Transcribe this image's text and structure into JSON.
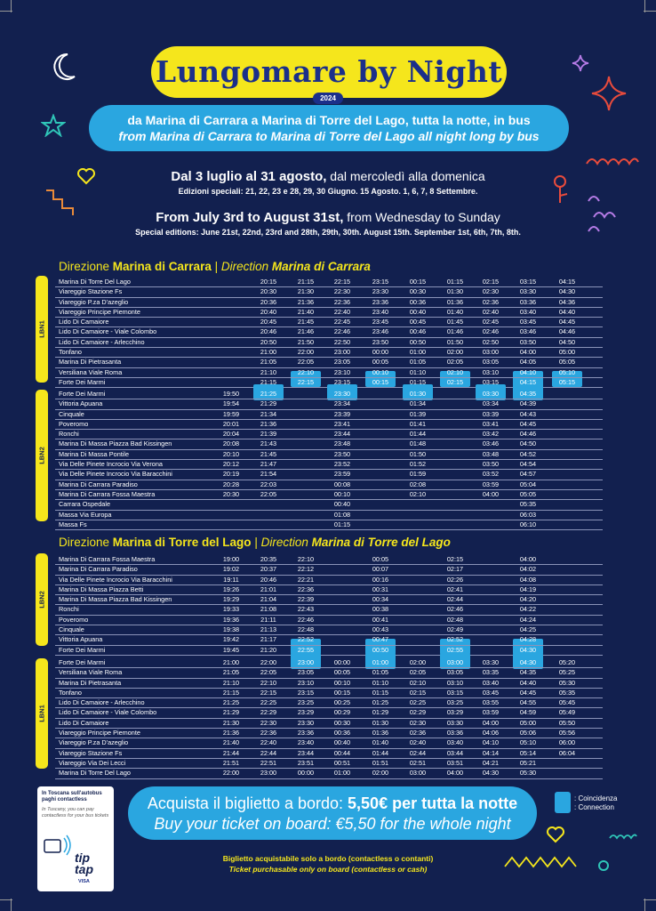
{
  "title": "Lungomare by Night",
  "year": "2024",
  "subtitle_it": "da Marina di Carrara a Marina di Torre del Lago, tutta la notte, in bus",
  "subtitle_en": "from Marina di Carrara to Marina di Torre del Lago all night long by bus",
  "period_it_bold": "Dal 3 luglio al 31 agosto,",
  "period_it_rest": " dal mercoledì alla domenica",
  "special_it": "Edizioni speciali: 21, 22, 23 e 28, 29, 30 Giugno. 15 Agosto. 1, 6, 7, 8 Settembre.",
  "period_en_bold": "From July 3rd to August 31st,",
  "period_en_rest": " from Wednesday to Sunday",
  "special_en": "Special editions: June 21st, 22nd, 23rd and 28th, 29th, 30th. August 15th. September 1st, 6th, 7th, 8th.",
  "section1": {
    "it_prefix": "Direzione ",
    "it_dest": "Marina di Carrara",
    "sep": " | ",
    "en_prefix": "Direction ",
    "en_dest": "Marina di Carrara"
  },
  "section2": {
    "it_prefix": "Direzione ",
    "it_dest": "Marina di Torre del Lago",
    "sep": " | ",
    "en_prefix": "Direction ",
    "en_dest": "Marina di Torre del Lago"
  },
  "lines": {
    "lbn1": "LBN1",
    "lbn2": "LBN2"
  },
  "table1a": [
    [
      "Marina Di Torre Del Lago",
      "",
      "20:15",
      "21:15",
      "22:15",
      "23:15",
      "00:15",
      "01:15",
      "02:15",
      "03:15",
      "04:15"
    ],
    [
      "Viareggio Stazione Fs",
      "",
      "20:30",
      "21:30",
      "22:30",
      "23:30",
      "00:30",
      "01:30",
      "02:30",
      "03:30",
      "04:30"
    ],
    [
      "Viareggio P.za D'azeglio",
      "",
      "20:36",
      "21:36",
      "22:36",
      "23:36",
      "00:36",
      "01:36",
      "02:36",
      "03:36",
      "04:36"
    ],
    [
      "Viareggio Principe Piemonte",
      "",
      "20:40",
      "21:40",
      "22:40",
      "23:40",
      "00:40",
      "01:40",
      "02:40",
      "03:40",
      "04:40"
    ],
    [
      "Lido Di Camaiore",
      "",
      "20:45",
      "21:45",
      "22:45",
      "23:45",
      "00:45",
      "01:45",
      "02:45",
      "03:45",
      "04:45"
    ],
    [
      "Lido Di Camaiore - Viale Colombo",
      "",
      "20:46",
      "21:46",
      "22:46",
      "23:46",
      "00:46",
      "01:46",
      "02:46",
      "03:46",
      "04:46"
    ],
    [
      "Lido Di Camaiore - Arlecchino",
      "",
      "20:50",
      "21:50",
      "22:50",
      "23:50",
      "00:50",
      "01:50",
      "02:50",
      "03:50",
      "04:50"
    ],
    [
      "Tonfano",
      "",
      "21:00",
      "22:00",
      "23:00",
      "00:00",
      "01:00",
      "02:00",
      "03:00",
      "04:00",
      "05:00"
    ],
    [
      "Marina Di Pietrasanta",
      "",
      "21:05",
      "22:05",
      "23:05",
      "00:05",
      "01:05",
      "02:05",
      "03:05",
      "04:05",
      "05:05"
    ],
    [
      "Versiliana Viale Roma",
      "",
      "21:10",
      "22:10",
      "23:10",
      "00:10",
      "01:10",
      "02:10",
      "03:10",
      "04:10",
      "05:10"
    ],
    [
      "Forte Dei Marmi",
      "",
      "21:15",
      "22:15",
      "23:15",
      "00:15",
      "01:15",
      "02:15",
      "03:15",
      "04:15",
      "05:15"
    ]
  ],
  "table1b": [
    [
      "Forte Dei Marmi",
      "19:50",
      "21:25",
      "",
      "23:30",
      "",
      "01:30",
      "",
      "03:30",
      "04:35",
      ""
    ],
    [
      "Vittoria Apuana",
      "19:54",
      "21:29",
      "",
      "23:34",
      "",
      "01:34",
      "",
      "03:34",
      "04:39",
      ""
    ],
    [
      "Cinquale",
      "19:59",
      "21:34",
      "",
      "23:39",
      "",
      "01:39",
      "",
      "03:39",
      "04:43",
      ""
    ],
    [
      "Poveromo",
      "20:01",
      "21:36",
      "",
      "23:41",
      "",
      "01:41",
      "",
      "03:41",
      "04:45",
      ""
    ],
    [
      "Ronchi",
      "20:04",
      "21:39",
      "",
      "23:44",
      "",
      "01:44",
      "",
      "03:42",
      "04:46",
      ""
    ],
    [
      "Marina Di Massa Piazza Bad Kissingen",
      "20:08",
      "21:43",
      "",
      "23:48",
      "",
      "01:48",
      "",
      "03:46",
      "04:50",
      ""
    ],
    [
      "Marina Di Massa Pontile",
      "20:10",
      "21:45",
      "",
      "23:50",
      "",
      "01:50",
      "",
      "03:48",
      "04:52",
      ""
    ],
    [
      "Via Delle Pinete Incrocio Via Verona",
      "20:12",
      "21:47",
      "",
      "23:52",
      "",
      "01:52",
      "",
      "03:50",
      "04:54",
      ""
    ],
    [
      "Via Delle Pinete Incrocio Via Baracchini",
      "20:19",
      "21:54",
      "",
      "23:59",
      "",
      "01:59",
      "",
      "03:52",
      "04:57",
      ""
    ],
    [
      "Marina Di Carrara Paradiso",
      "20:28",
      "22:03",
      "",
      "00:08",
      "",
      "02:08",
      "",
      "03:59",
      "05:04",
      ""
    ],
    [
      "Marina Di Carrara Fossa Maestra",
      "20:30",
      "22:05",
      "",
      "00:10",
      "",
      "02:10",
      "",
      "04:00",
      "05:05",
      ""
    ],
    [
      "Carrara Ospedale",
      "",
      "",
      "",
      "00:40",
      "",
      "",
      "",
      "",
      "05:35",
      ""
    ],
    [
      "Massa Via Europa",
      "",
      "",
      "",
      "01:08",
      "",
      "",
      "",
      "",
      "06:03",
      ""
    ],
    [
      "Massa Fs",
      "",
      "",
      "",
      "01:15",
      "",
      "",
      "",
      "",
      "06:10",
      ""
    ]
  ],
  "table2a": [
    [
      "Marina Di Carrara Fossa Maestra",
      "19:00",
      "20:35",
      "22:10",
      "",
      "00:05",
      "",
      "02:15",
      "",
      "04:00",
      ""
    ],
    [
      "Marina Di Carrara Paradiso",
      "19:02",
      "20:37",
      "22:12",
      "",
      "00:07",
      "",
      "02:17",
      "",
      "04:02",
      ""
    ],
    [
      "Via Delle Pinete Incrocio Via Baracchini",
      "19:11",
      "20:46",
      "22:21",
      "",
      "00:16",
      "",
      "02:26",
      "",
      "04:08",
      ""
    ],
    [
      "Marina Di Massa Piazza Betti",
      "19:26",
      "21:01",
      "22:36",
      "",
      "00:31",
      "",
      "02:41",
      "",
      "04:19",
      ""
    ],
    [
      "Marina Di Massa Piazza Bad Kissingen",
      "19:29",
      "21:04",
      "22:39",
      "",
      "00:34",
      "",
      "02:44",
      "",
      "04:20",
      ""
    ],
    [
      "Ronchi",
      "19:33",
      "21:08",
      "22:43",
      "",
      "00:38",
      "",
      "02:46",
      "",
      "04:22",
      ""
    ],
    [
      "Poveromo",
      "19:36",
      "21:11",
      "22:46",
      "",
      "00:41",
      "",
      "02:48",
      "",
      "04:24",
      ""
    ],
    [
      "Cinquale",
      "19:38",
      "21:13",
      "22:48",
      "",
      "00:43",
      "",
      "02:49",
      "",
      "04:25",
      ""
    ],
    [
      "Vittoria Apuana",
      "19:42",
      "21:17",
      "22:52",
      "",
      "00:47",
      "",
      "02:52",
      "",
      "04:28",
      ""
    ],
    [
      "Forte Dei Marmi",
      "19:45",
      "21:20",
      "22:55",
      "",
      "00:50",
      "",
      "02:55",
      "",
      "04:30",
      ""
    ]
  ],
  "table2b": [
    [
      "Forte Dei Marmi",
      "21:00",
      "22:00",
      "23:00",
      "00:00",
      "01:00",
      "02:00",
      "03:00",
      "03:30",
      "04:30",
      "05:20"
    ],
    [
      "Versiliana Viale Roma",
      "21:05",
      "22:05",
      "23:05",
      "00:05",
      "01:05",
      "02:05",
      "03:05",
      "03:35",
      "04:35",
      "05:25"
    ],
    [
      "Marina Di Pietrasanta",
      "21:10",
      "22:10",
      "23:10",
      "00:10",
      "01:10",
      "02:10",
      "03:10",
      "03:40",
      "04:40",
      "05:30"
    ],
    [
      "Tonfano",
      "21:15",
      "22:15",
      "23:15",
      "00:15",
      "01:15",
      "02:15",
      "03:15",
      "03:45",
      "04:45",
      "05:35"
    ],
    [
      "Lido Di Camaiore - Arlecchino",
      "21:25",
      "22:25",
      "23:25",
      "00:25",
      "01:25",
      "02:25",
      "03:25",
      "03:55",
      "04:55",
      "05:45"
    ],
    [
      "Lido Di Camaiore - Viale Colombo",
      "21:29",
      "22:29",
      "23:29",
      "00:29",
      "01:29",
      "02:29",
      "03:29",
      "03:59",
      "04:59",
      "05:49"
    ],
    [
      "Lido Di Camaiore",
      "21:30",
      "22:30",
      "23:30",
      "00:30",
      "01:30",
      "02:30",
      "03:30",
      "04:00",
      "05:00",
      "05:50"
    ],
    [
      "Viareggio Principe Piemonte",
      "21:36",
      "22:36",
      "23:36",
      "00:36",
      "01:36",
      "02:36",
      "03:36",
      "04:06",
      "05:06",
      "05:56"
    ],
    [
      "Viareggio P.za D'azeglio",
      "21:40",
      "22:40",
      "23:40",
      "00:40",
      "01:40",
      "02:40",
      "03:40",
      "04:10",
      "05:10",
      "06:00"
    ],
    [
      "Viareggio Stazione Fs",
      "21:44",
      "22:44",
      "23:44",
      "00:44",
      "01:44",
      "02:44",
      "03:44",
      "04:14",
      "05:14",
      "06:04"
    ],
    [
      "Viareggio Via Dei Lecci",
      "21:51",
      "22:51",
      "23:51",
      "00:51",
      "01:51",
      "02:51",
      "03:51",
      "04:21",
      "05:21",
      ""
    ],
    [
      "Marina Di Torre Del Lago",
      "22:00",
      "23:00",
      "00:00",
      "01:00",
      "02:00",
      "03:00",
      "04:00",
      "04:30",
      "05:30",
      ""
    ]
  ],
  "buy": {
    "it_prefix": "Acquista il biglietto a bordo: ",
    "it_bold": "5,50€ per tutta la notte",
    "en": "Buy your ticket on board: €5,50 for the whole night"
  },
  "legend": {
    "it": ": Coincidenza",
    "en": ": Connection"
  },
  "board_it": "Biglietto acquistabile solo a bordo (contactless o contanti)",
  "board_en": "Ticket purchasable only on board (contactless or cash)",
  "card": {
    "h1": "In Toscana sull'autobus",
    "h2": "paghi contactless",
    "s": "In Tuscany, you can pay contactless for your bus tickets",
    "brand1": "tip",
    "brand2": "tap",
    "cards": "VISA"
  },
  "colors": {
    "background": "#12204f",
    "yellow": "#f5e61c",
    "blue": "#2aa6e0",
    "title": "#1b2f8a"
  }
}
